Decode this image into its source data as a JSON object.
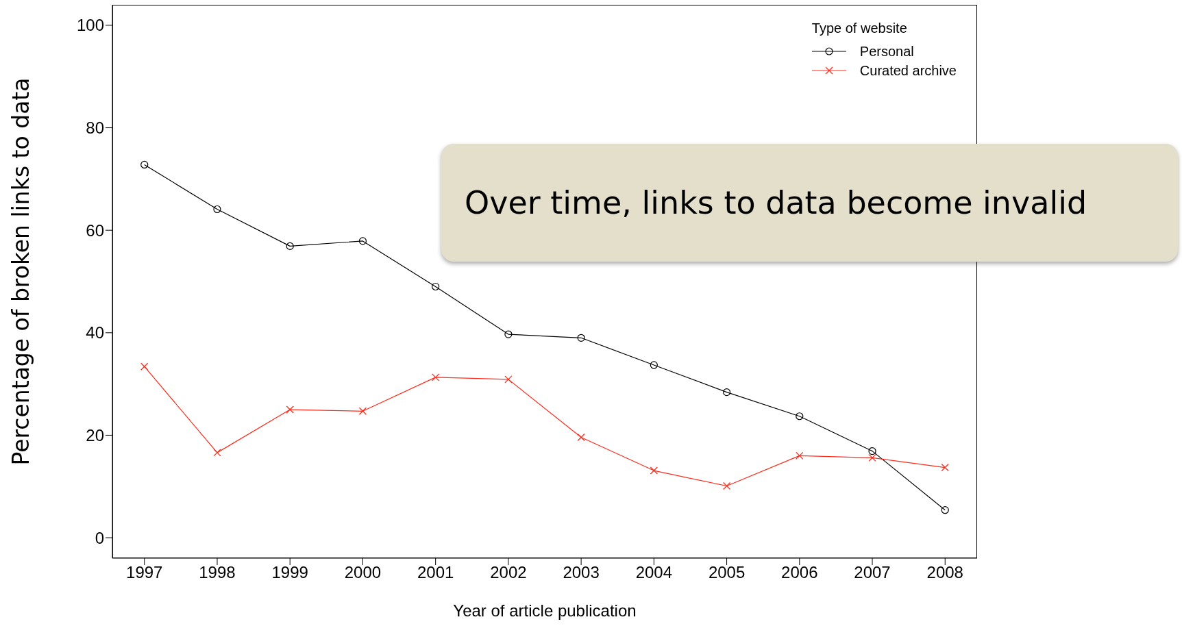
{
  "chart_data": {
    "type": "line",
    "xlabel": "Year of article publication",
    "ylabel": "Percentage of broken links to data",
    "legend_title": "Type of website",
    "legend": "top right",
    "categories": [
      "1997",
      "1998",
      "1999",
      "2000",
      "2001",
      "2002",
      "2003",
      "2004",
      "2005",
      "2006",
      "2007",
      "2008"
    ],
    "series": [
      {
        "name": "Personal",
        "color": "#000000",
        "marker": "circle",
        "values": [
          72.8,
          64.1,
          56.9,
          57.9,
          49.0,
          39.7,
          39.0,
          33.7,
          28.4,
          23.7,
          16.9,
          5.4
        ]
      },
      {
        "name": "Curated archive",
        "color": "#ff2a1a",
        "marker": "cross",
        "values": [
          33.4,
          16.6,
          25.0,
          24.7,
          31.3,
          30.9,
          19.6,
          13.1,
          10.1,
          16.0,
          15.6,
          13.7
        ]
      }
    ],
    "ylim": [
      -4,
      104
    ],
    "yticks": [
      0,
      20,
      40,
      60,
      80,
      100
    ],
    "grid": false,
    "annotations": [
      "Over time, links to data become invalid"
    ]
  }
}
